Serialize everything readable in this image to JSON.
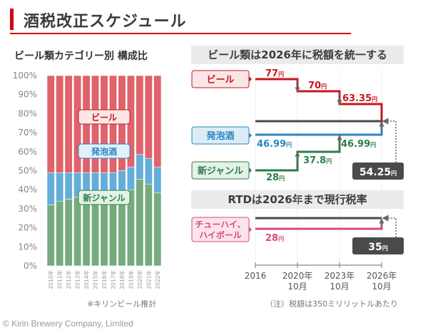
{
  "header": {
    "title": "酒税改正スケジュール",
    "accent_color": "#d7000f"
  },
  "footer": {
    "copyright": "© Kirin  Brewery Company, Limited"
  },
  "chart_data": [
    {
      "type": "bar",
      "stacked": true,
      "title": "ビール類カテゴリー別 構成比",
      "note": "※キリンビール推計",
      "categories": [
        "2010年",
        "2011年",
        "2012年",
        "2013年",
        "2014年",
        "2015年",
        "2016年",
        "2017年",
        "2018年",
        "2019年",
        "2020年",
        "2021年",
        "2022年"
      ],
      "ylim": [
        0,
        100
      ],
      "yticks": [
        "0%",
        "10%",
        "20%",
        "30%",
        "40%",
        "50%",
        "60%",
        "70%",
        "80%",
        "90%",
        "100%"
      ],
      "series": [
        {
          "name": "新ジャンル",
          "color": "#76ab7e",
          "values": [
            32,
            34,
            35,
            36,
            35,
            34.5,
            35,
            35.5,
            38,
            40,
            45.5,
            43,
            38.5
          ]
        },
        {
          "name": "発泡酒",
          "color": "#63aed8",
          "values": [
            17,
            15,
            14,
            13,
            14,
            14.5,
            14,
            13.5,
            12,
            12,
            13,
            13.5,
            13.5
          ]
        },
        {
          "name": "ビール",
          "color": "#e0626a",
          "values": [
            51,
            51,
            51,
            51,
            51,
            51,
            51,
            51,
            50,
            48,
            41.5,
            43.5,
            48
          ]
        }
      ],
      "labels": [
        {
          "text": "ビール",
          "series": "ビール"
        },
        {
          "text": "発泡酒",
          "series": "発泡酒"
        },
        {
          "text": "新ジャンル",
          "series": "新ジャンル"
        }
      ]
    },
    {
      "type": "line",
      "step": true,
      "title": "ビール類は2026年に税額を統一する",
      "x": [
        "2016",
        "2020年\n10月",
        "2023年\n10月",
        "2026年\n10月"
      ],
      "series": [
        {
          "name": "ビール",
          "color": "#c8161d",
          "values": [
            77,
            70,
            63.35,
            54.25
          ],
          "labels": [
            "77円",
            "70円",
            "63.35円"
          ]
        },
        {
          "name": "発泡酒",
          "color": "#2a86c0",
          "values": [
            46.99,
            46.99,
            46.99,
            54.25
          ],
          "labels": [
            "46.99円",
            "46.99円"
          ]
        },
        {
          "name": "新ジャンル",
          "color": "#2e7d4a",
          "values": [
            28,
            37.8,
            46.99,
            54.25
          ],
          "labels": [
            "28円",
            "37.8円"
          ]
        }
      ],
      "target": {
        "label": "54.25円",
        "value": 54.25
      }
    },
    {
      "type": "line",
      "step": true,
      "title": "RTDは2026年まで現行税率",
      "x": [
        "2016",
        "2020年\n10月",
        "2023年\n10月",
        "2026年\n10月"
      ],
      "series": [
        {
          "name": "チューハイ、ハイボール",
          "color": "#d84a7c",
          "values": [
            28,
            28,
            28,
            35
          ],
          "labels": [
            "28円"
          ]
        }
      ],
      "target": {
        "label": "35円",
        "value": 35
      }
    }
  ],
  "right": {
    "beer_label": "ビール",
    "happoshu_label": "発泡酒",
    "shingenre_label": "新ジャンル",
    "rtd_label_line1": "チューハイ、",
    "rtd_label_line2": "ハイボール",
    "beer_vals": [
      "77",
      "70",
      "63.35"
    ],
    "happoshu_vals": [
      "46.99",
      "46.99"
    ],
    "shingenre_vals": [
      "28",
      "37.8"
    ],
    "rtd_vals": [
      "28"
    ],
    "yen": "円",
    "unified_target": "54.25",
    "rtd_target": "35",
    "axis": {
      "t0": "2016",
      "t1a": "2020年",
      "t1b": "10月",
      "t2a": "2023年",
      "t2b": "10月",
      "t3a": "2026年",
      "t3b": "10月"
    },
    "note": "（注）税額は350ミリリットルあたり"
  }
}
